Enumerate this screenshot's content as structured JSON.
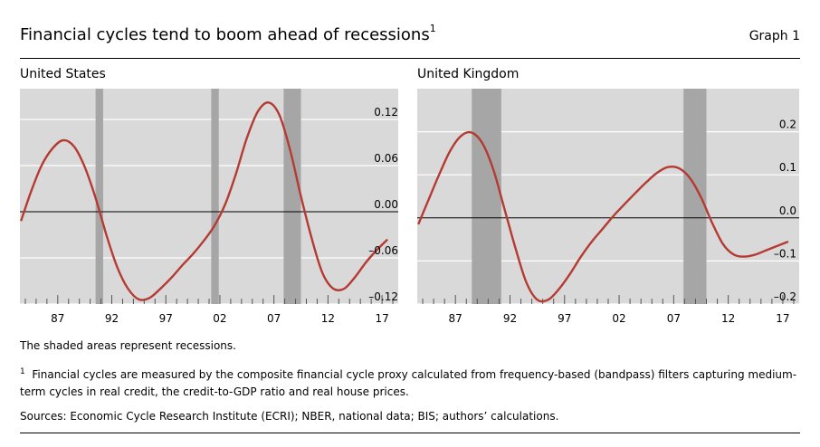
{
  "header": {
    "title": "Financial cycles tend to boom ahead of recessions",
    "title_footnote_marker": "1",
    "graph_label": "Graph 1"
  },
  "colors": {
    "plot_background": "#d9d9d9",
    "gridline": "#ffffff",
    "recession_shade": "#a6a6a6",
    "series_line": "#b53a32",
    "zero_line": "#000000"
  },
  "chart_data": [
    {
      "type": "line",
      "title": "United States",
      "xlabel": "",
      "ylabel": "",
      "xlim": [
        1983.5,
        2018.5
      ],
      "ylim": [
        -0.12,
        0.16
      ],
      "x_tick_labels": [
        "87",
        "92",
        "97",
        "02",
        "07",
        "12",
        "17"
      ],
      "x_tick_values": [
        1987,
        1992,
        1997,
        2002,
        2007,
        2012,
        2017
      ],
      "y_tick_labels": [
        "0.12",
        "0.06",
        "0.00",
        "–0.06",
        "–0.12"
      ],
      "y_tick_values": [
        0.12,
        0.06,
        0.0,
        -0.06,
        -0.12
      ],
      "grid": true,
      "recessions": [
        [
          1990.5,
          1991.2
        ],
        [
          2001.2,
          2001.9
        ],
        [
          2007.9,
          2009.5
        ]
      ],
      "series": [
        {
          "x": [
            1983.6,
            1984.5,
            1985.5,
            1986.5,
            1987.5,
            1988.5,
            1989.5,
            1990.5,
            1991.5,
            1992.5,
            1993.5,
            1994.5,
            1995.5,
            1996.5,
            1997.5,
            1998.5,
            1999.5,
            2000.5,
            2001.5,
            2002.5,
            2003.5,
            2004.5,
            2005.5,
            2006.5,
            2007.5,
            2008.5,
            2009.5,
            2010.5,
            2011.5,
            2012.5,
            2013.5,
            2014.5,
            2015.5,
            2016.5,
            2017.5
          ],
          "values": [
            -0.012,
            0.025,
            0.06,
            0.082,
            0.093,
            0.085,
            0.058,
            0.018,
            -0.03,
            -0.072,
            -0.1,
            -0.114,
            -0.112,
            -0.1,
            -0.086,
            -0.07,
            -0.055,
            -0.038,
            -0.018,
            0.01,
            0.05,
            0.096,
            0.13,
            0.142,
            0.126,
            0.08,
            0.02,
            -0.035,
            -0.08,
            -0.1,
            -0.1,
            -0.085,
            -0.066,
            -0.05,
            -0.036
          ]
        }
      ]
    },
    {
      "type": "line",
      "title": "United Kingdom",
      "xlabel": "",
      "ylabel": "",
      "xlim": [
        1983.5,
        2018.5
      ],
      "ylim": [
        -0.2,
        0.3
      ],
      "x_tick_labels": [
        "87",
        "92",
        "97",
        "02",
        "07",
        "12",
        "17"
      ],
      "x_tick_values": [
        1987,
        1992,
        1997,
        2002,
        2007,
        2012,
        2017
      ],
      "y_tick_labels": [
        "0.2",
        "0.1",
        "0.0",
        "–0.1",
        "–0.2"
      ],
      "y_tick_values": [
        0.2,
        0.1,
        0.0,
        -0.1,
        -0.2
      ],
      "grid": true,
      "recessions": [
        [
          1988.5,
          1991.2
        ],
        [
          2007.9,
          2010
        ]
      ],
      "series": [
        {
          "x": [
            1983.6,
            1984.5,
            1985.5,
            1986.5,
            1987.5,
            1988.5,
            1989.5,
            1990.5,
            1991.5,
            1992.5,
            1993.5,
            1994.5,
            1995.5,
            1996.5,
            1997.5,
            1998.5,
            1999.5,
            2000.5,
            2001.5,
            2002.5,
            2003.5,
            2004.5,
            2005.5,
            2006.5,
            2007.5,
            2008.5,
            2009.5,
            2010.5,
            2011.5,
            2012.5,
            2013.5,
            2014.5,
            2015.5,
            2016.5,
            2017.5
          ],
          "values": [
            -0.015,
            0.04,
            0.1,
            0.155,
            0.19,
            0.198,
            0.172,
            0.11,
            0.02,
            -0.07,
            -0.15,
            -0.19,
            -0.19,
            -0.165,
            -0.13,
            -0.09,
            -0.055,
            -0.025,
            0.005,
            0.032,
            0.058,
            0.083,
            0.105,
            0.118,
            0.115,
            0.092,
            0.048,
            -0.01,
            -0.06,
            -0.085,
            -0.09,
            -0.085,
            -0.075,
            -0.065,
            -0.055
          ]
        }
      ]
    }
  ],
  "notes": {
    "shading": "The shaded areas represent recessions.",
    "footnote_marker": "1",
    "footnote": "Financial cycles are measured by the composite financial cycle proxy calculated from frequency-based (bandpass) filters capturing medium-term cycles in real credit, the credit-to-GDP ratio and real house prices.",
    "sources": "Sources: Economic Cycle Research Institute (ECRI); NBER, national data; BIS; authors’ calculations."
  }
}
